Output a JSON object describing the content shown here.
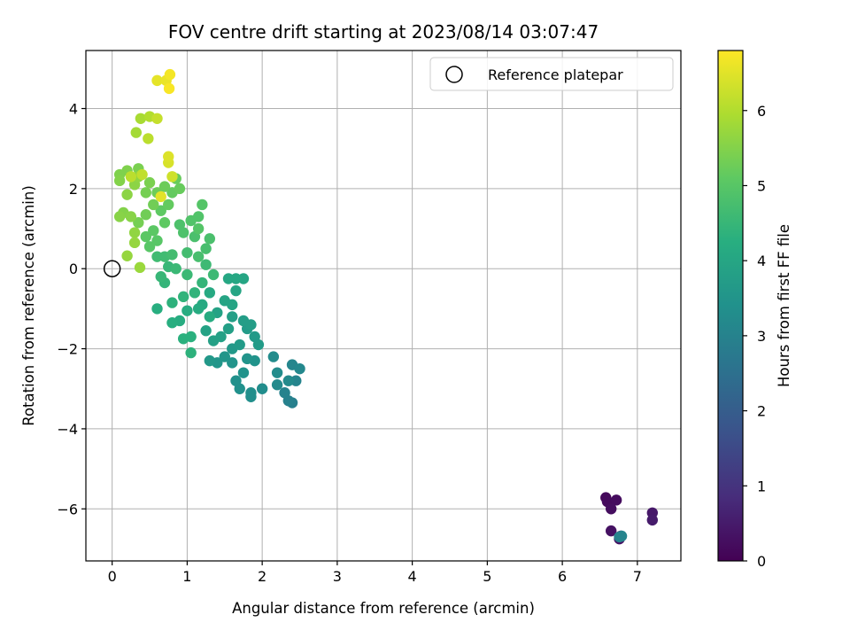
{
  "chart_data": {
    "type": "scatter",
    "title": "FOV centre drift starting at 2023/08/14 03:07:47",
    "xlabel": "Angular distance from reference (arcmin)",
    "ylabel": "Rotation from reference (arcmin)",
    "xlim": [
      -0.35,
      7.58
    ],
    "ylim": [
      -7.3,
      5.45
    ],
    "xticks": [
      0,
      1,
      2,
      3,
      4,
      5,
      6,
      7
    ],
    "yticks": [
      -6,
      -4,
      -2,
      0,
      2,
      4
    ],
    "xtick_labels": [
      "0",
      "1",
      "2",
      "3",
      "4",
      "5",
      "6",
      "7"
    ],
    "ytick_labels": [
      "−6",
      "−4",
      "−2",
      "0",
      "2",
      "4"
    ],
    "grid": true,
    "legend": {
      "position": "top-right",
      "entries": [
        "Reference platepar"
      ]
    },
    "reference_point": {
      "x": 0,
      "y": 0,
      "label": "Reference platepar"
    },
    "colorbar": {
      "label": "Hours from first FF file",
      "colormap": "viridis",
      "range": [
        0,
        6.8
      ],
      "ticks": [
        0,
        1,
        2,
        3,
        4,
        5,
        6
      ],
      "tick_labels": [
        "0",
        "1",
        "2",
        "3",
        "4",
        "5",
        "6"
      ]
    },
    "points": [
      [
        6.58,
        -5.72,
        0.15
      ],
      [
        6.6,
        -5.82,
        0.18
      ],
      [
        6.72,
        -5.78,
        0.22
      ],
      [
        6.65,
        -6.0,
        0.25
      ],
      [
        6.65,
        -6.55,
        0.3
      ],
      [
        6.76,
        -6.75,
        0.35
      ],
      [
        6.78,
        -6.68,
        0.4
      ],
      [
        7.2,
        -6.1,
        0.45
      ],
      [
        7.2,
        -6.28,
        0.5
      ],
      [
        6.76,
        -6.7,
        3.0
      ],
      [
        6.79,
        -6.68,
        3.05
      ],
      [
        2.4,
        -3.35,
        2.9
      ],
      [
        2.35,
        -3.3,
        2.95
      ],
      [
        2.3,
        -3.1,
        3.0
      ],
      [
        2.45,
        -2.8,
        3.05
      ],
      [
        2.4,
        -2.4,
        3.1
      ],
      [
        2.5,
        -2.5,
        3.15
      ],
      [
        2.35,
        -2.8,
        3.2
      ],
      [
        2.2,
        -2.9,
        3.2
      ],
      [
        2.2,
        -2.6,
        3.25
      ],
      [
        2.15,
        -2.2,
        3.25
      ],
      [
        2.0,
        -3.0,
        3.3
      ],
      [
        1.85,
        -3.1,
        3.35
      ],
      [
        1.85,
        -3.2,
        3.35
      ],
      [
        1.7,
        -3.0,
        3.4
      ],
      [
        1.65,
        -2.8,
        3.4
      ],
      [
        1.75,
        -2.6,
        3.45
      ],
      [
        1.9,
        -2.3,
        3.45
      ],
      [
        1.8,
        -2.25,
        3.5
      ],
      [
        1.6,
        -2.35,
        3.5
      ],
      [
        1.5,
        -2.2,
        3.55
      ],
      [
        1.4,
        -2.35,
        3.55
      ],
      [
        1.3,
        -2.3,
        3.6
      ],
      [
        1.6,
        -2.0,
        3.6
      ],
      [
        1.7,
        -1.9,
        3.65
      ],
      [
        1.9,
        -1.7,
        3.65
      ],
      [
        1.95,
        -1.9,
        3.7
      ],
      [
        1.8,
        -1.5,
        3.7
      ],
      [
        1.85,
        -1.4,
        3.75
      ],
      [
        1.75,
        -1.3,
        3.75
      ],
      [
        1.6,
        -1.2,
        3.8
      ],
      [
        1.55,
        -1.5,
        3.8
      ],
      [
        1.45,
        -1.7,
        3.85
      ],
      [
        1.35,
        -1.8,
        3.85
      ],
      [
        1.25,
        -1.55,
        3.9
      ],
      [
        1.4,
        -1.1,
        3.9
      ],
      [
        1.5,
        -0.8,
        3.95
      ],
      [
        1.6,
        -0.9,
        3.95
      ],
      [
        1.65,
        -0.55,
        4.0
      ],
      [
        1.75,
        -0.25,
        4.0
      ],
      [
        1.65,
        -0.25,
        4.05
      ],
      [
        1.55,
        -0.25,
        4.05
      ],
      [
        1.3,
        -0.6,
        4.1
      ],
      [
        1.2,
        -0.9,
        4.1
      ],
      [
        1.3,
        -1.2,
        4.15
      ],
      [
        1.15,
        -1.0,
        4.15
      ],
      [
        1.0,
        -1.05,
        4.2
      ],
      [
        0.9,
        -1.3,
        4.2
      ],
      [
        0.8,
        -1.35,
        4.25
      ],
      [
        0.6,
        -1.0,
        4.25
      ],
      [
        0.95,
        -1.75,
        4.3
      ],
      [
        1.05,
        -1.7,
        4.3
      ],
      [
        1.05,
        -2.1,
        4.35
      ],
      [
        0.8,
        -0.85,
        4.35
      ],
      [
        0.95,
        -0.7,
        4.4
      ],
      [
        1.1,
        -0.6,
        4.4
      ],
      [
        1.2,
        -0.35,
        4.45
      ],
      [
        0.7,
        -0.35,
        4.45
      ],
      [
        0.65,
        -0.2,
        4.5
      ],
      [
        0.75,
        0.05,
        4.5
      ],
      [
        0.85,
        0.0,
        4.55
      ],
      [
        1.0,
        -0.15,
        4.55
      ],
      [
        1.25,
        0.1,
        4.6
      ],
      [
        1.35,
        -0.15,
        4.6
      ],
      [
        0.6,
        0.3,
        4.65
      ],
      [
        0.7,
        0.3,
        4.65
      ],
      [
        0.8,
        0.35,
        4.7
      ],
      [
        1.0,
        0.4,
        4.7
      ],
      [
        1.15,
        0.3,
        4.75
      ],
      [
        1.25,
        0.5,
        4.75
      ],
      [
        1.3,
        0.75,
        4.8
      ],
      [
        1.1,
        0.8,
        4.8
      ],
      [
        0.95,
        0.9,
        4.85
      ],
      [
        0.9,
        1.1,
        4.85
      ],
      [
        1.05,
        1.2,
        4.9
      ],
      [
        1.15,
        1.3,
        4.9
      ],
      [
        1.2,
        1.6,
        4.95
      ],
      [
        1.15,
        1.0,
        4.95
      ],
      [
        0.6,
        0.7,
        5.0
      ],
      [
        0.5,
        0.55,
        5.0
      ],
      [
        0.45,
        0.8,
        5.05
      ],
      [
        0.55,
        0.95,
        5.05
      ],
      [
        0.7,
        1.15,
        5.1
      ],
      [
        0.65,
        1.45,
        5.1
      ],
      [
        0.75,
        1.6,
        5.15
      ],
      [
        0.8,
        1.9,
        5.15
      ],
      [
        0.9,
        2.0,
        5.2
      ],
      [
        0.85,
        2.25,
        5.2
      ],
      [
        0.7,
        2.05,
        5.25
      ],
      [
        0.6,
        1.9,
        5.25
      ],
      [
        0.55,
        1.6,
        5.3
      ],
      [
        0.45,
        1.35,
        5.3
      ],
      [
        0.35,
        1.15,
        5.35
      ],
      [
        0.45,
        1.9,
        5.35
      ],
      [
        0.5,
        2.15,
        5.4
      ],
      [
        0.35,
        2.5,
        5.4
      ],
      [
        0.2,
        2.45,
        5.45
      ],
      [
        0.1,
        2.35,
        5.45
      ],
      [
        0.1,
        2.2,
        5.5
      ],
      [
        0.15,
        1.4,
        5.5
      ],
      [
        0.1,
        1.3,
        5.55
      ],
      [
        0.25,
        1.3,
        5.55
      ],
      [
        0.2,
        1.85,
        5.6
      ],
      [
        0.3,
        2.1,
        5.6
      ],
      [
        0.35,
        2.3,
        5.65
      ],
      [
        0.3,
        0.9,
        5.65
      ],
      [
        0.3,
        0.65,
        5.7
      ],
      [
        0.2,
        0.32,
        5.7
      ],
      [
        0.37,
        0.03,
        5.75
      ],
      [
        0.32,
        3.4,
        5.85
      ],
      [
        0.38,
        3.75,
        5.9
      ],
      [
        0.5,
        3.8,
        6.0
      ],
      [
        0.48,
        3.25,
        6.1
      ],
      [
        0.25,
        2.3,
        6.1
      ],
      [
        0.4,
        2.35,
        6.15
      ],
      [
        0.6,
        3.75,
        6.2
      ],
      [
        0.8,
        2.3,
        6.3
      ],
      [
        0.75,
        2.65,
        6.4
      ],
      [
        0.75,
        2.8,
        6.45
      ],
      [
        0.65,
        1.8,
        6.5
      ],
      [
        0.6,
        4.7,
        6.55
      ],
      [
        0.72,
        4.7,
        6.6
      ],
      [
        0.77,
        4.85,
        6.7
      ],
      [
        0.76,
        4.5,
        6.75
      ]
    ]
  }
}
